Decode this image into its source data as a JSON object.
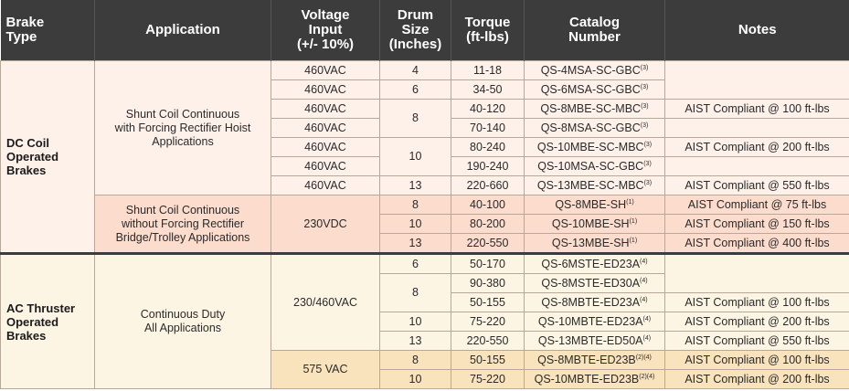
{
  "headers": {
    "brake_type": [
      "Brake",
      "Type"
    ],
    "application": "Application",
    "voltage": [
      "Voltage",
      "Input",
      "(+/- 10%)"
    ],
    "drum": [
      "Drum",
      "Size",
      "(Inches)"
    ],
    "torque": [
      "Torque",
      "(ft-lbs)"
    ],
    "catalog": [
      "Catalog",
      "Number"
    ],
    "notes": "Notes"
  },
  "groups": {
    "dc": {
      "type": [
        "DC Coil",
        "Operated",
        "Brakes"
      ],
      "app1": [
        "Shunt Coil Continuous",
        "with Forcing Rectifier Hoist",
        "Applications"
      ],
      "app2": [
        "Shunt Coil Continuous",
        "without Forcing Rectifier",
        "Bridge/Trolley Applications"
      ],
      "voltage2": "230VDC"
    },
    "ac": {
      "type": [
        "AC Thruster",
        "Operated",
        "Brakes"
      ],
      "app": [
        "Continuous Duty",
        "All Applications"
      ],
      "voltage1": "230/460VAC",
      "voltage2": "575 VAC"
    }
  },
  "rows": [
    {
      "voltage": "460VAC",
      "drum": "4",
      "torque": "11-18",
      "catalog": "QS-4MSA-SC-GBC",
      "sup": "(3)",
      "notes": ""
    },
    {
      "voltage": "460VAC",
      "drum": "6",
      "torque": "34-50",
      "catalog": "QS-6MSA-SC-GBC",
      "sup": "(3)",
      "notes": ""
    },
    {
      "voltage": "460VAC",
      "drum": "8",
      "torque": "40-120",
      "catalog": "QS-8MBE-SC-MBC",
      "sup": "(3)",
      "notes": "AIST Compliant @ 100 ft-lbs"
    },
    {
      "voltage": "460VAC",
      "drum": "",
      "torque": "70-140",
      "catalog": "QS-8MSA-SC-GBC",
      "sup": "(3)",
      "notes": ""
    },
    {
      "voltage": "460VAC",
      "drum": "10",
      "torque": "80-240",
      "catalog": "QS-10MBE-SC-MBC",
      "sup": "(3)",
      "notes": "AIST Compliant @ 200 ft-lbs"
    },
    {
      "voltage": "460VAC",
      "drum": "",
      "torque": "190-240",
      "catalog": "QS-10MSA-SC-GBC",
      "sup": "(3)",
      "notes": ""
    },
    {
      "voltage": "460VAC",
      "drum": "13",
      "torque": "220-660",
      "catalog": "QS-13MBE-SC-MBC",
      "sup": "(3)",
      "notes": "AIST Compliant @ 550 ft-lbs"
    },
    {
      "voltage": "",
      "drum": "8",
      "torque": "40-100",
      "catalog": "QS-8MBE-SH",
      "sup": "(1)",
      "notes": "AIST Compliant @ 75 ft-lbs"
    },
    {
      "voltage": "",
      "drum": "10",
      "torque": "80-200",
      "catalog": "QS-10MBE-SH",
      "sup": "(1)",
      "notes": "AIST Compliant @ 150 ft-lbs"
    },
    {
      "voltage": "",
      "drum": "13",
      "torque": "220-550",
      "catalog": "QS-13MBE-SH",
      "sup": "(1)",
      "notes": "AIST Compliant @ 400 ft-lbs"
    },
    {
      "voltage": "",
      "drum": "6",
      "torque": "50-170",
      "catalog": "QS-6MSTE-ED23A",
      "sup": "(4)",
      "notes": ""
    },
    {
      "voltage": "",
      "drum": "8",
      "torque": "90-380",
      "catalog": "QS-8MSTE-ED30A",
      "sup": "(4)",
      "notes": ""
    },
    {
      "voltage": "",
      "drum": "",
      "torque": "50-155",
      "catalog": "QS-8MBTE-ED23A",
      "sup": "(4)",
      "notes": "AIST Compliant @ 100 ft-lbs"
    },
    {
      "voltage": "",
      "drum": "10",
      "torque": "75-220",
      "catalog": "QS-10MBTE-ED23A",
      "sup": "(4)",
      "notes": "AIST Compliant @ 200 ft-lbs"
    },
    {
      "voltage": "",
      "drum": "13",
      "torque": "220-550",
      "catalog": "QS-13MBTE-ED50A",
      "sup": "(4)",
      "notes": "AIST Compliant @ 550 ft-lbs"
    },
    {
      "voltage": "",
      "drum": "8",
      "torque": "50-155",
      "catalog": "QS-8MBTE-ED23B",
      "sup": "(2)(4)",
      "notes": "AIST Compliant @ 100 ft-lbs"
    },
    {
      "voltage": "",
      "drum": "10",
      "torque": "75-220",
      "catalog": "QS-10MBTE-ED23B",
      "sup": "(2)(4)",
      "notes": "AIST Compliant @ 200 ft-lbs"
    }
  ],
  "colors": {
    "header_bg": "#3c3c3c",
    "dc_type_bg": "#f0a07c",
    "dc_row1_bg": "#fdf1ea",
    "dc_row2_bg": "#fbdccd",
    "ac_type_bg": "#efc978",
    "ac_row1_bg": "#fdf5e4",
    "ac_row2_bg": "#f9e3bc"
  }
}
